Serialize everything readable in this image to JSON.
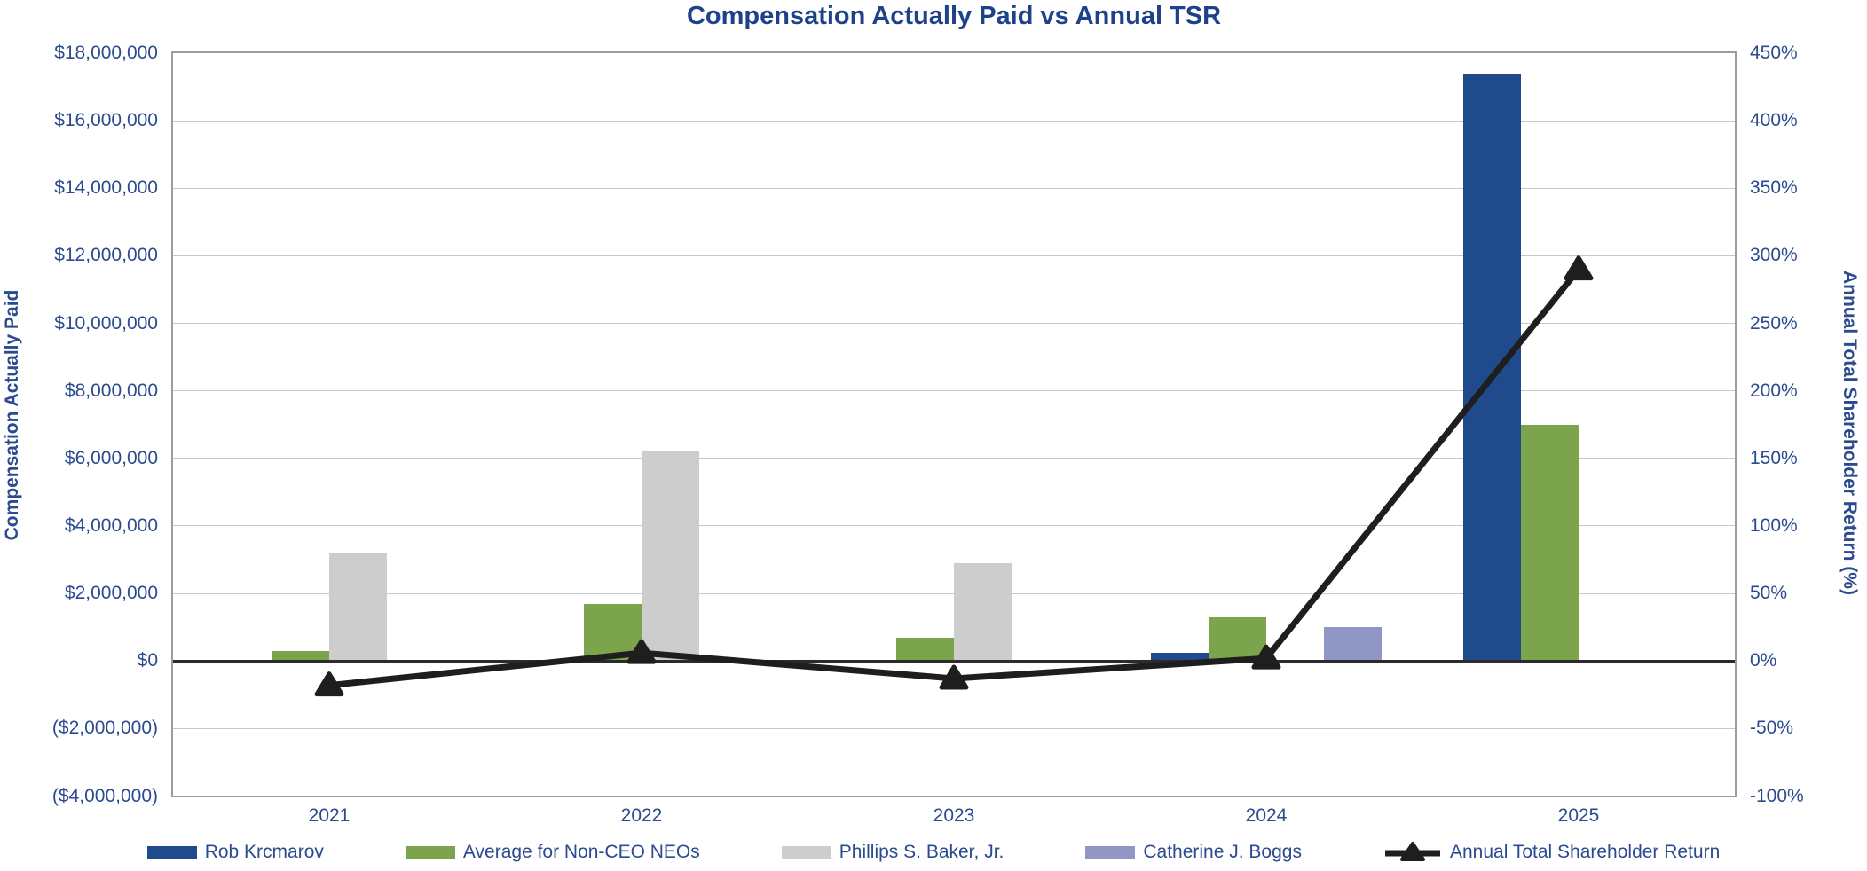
{
  "title": "Compensation Actually Paid vs Annual TSR",
  "left_axis": {
    "label": "Compensation Actually Paid",
    "max": 18000000,
    "min": -4000000,
    "step": 2000000,
    "ticks": [
      {
        "label": "$18,000,000",
        "value": 18000000
      },
      {
        "label": "$16,000,000",
        "value": 16000000
      },
      {
        "label": "$14,000,000",
        "value": 14000000
      },
      {
        "label": "$12,000,000",
        "value": 12000000
      },
      {
        "label": "$10,000,000",
        "value": 10000000
      },
      {
        "label": "$8,000,000",
        "value": 8000000
      },
      {
        "label": "$6,000,000",
        "value": 6000000
      },
      {
        "label": "$4,000,000",
        "value": 4000000
      },
      {
        "label": "$2,000,000",
        "value": 2000000
      },
      {
        "label": "$0",
        "value": 0
      },
      {
        "label": "($2,000,000)",
        "value": -2000000
      },
      {
        "label": "($4,000,000)",
        "value": -4000000
      }
    ]
  },
  "right_axis": {
    "label": "Annual Total Shareholder Return (%)",
    "max": 450,
    "min": -100,
    "step": 50,
    "ticks": [
      {
        "label": "450%",
        "value": 450
      },
      {
        "label": "400%",
        "value": 400
      },
      {
        "label": "350%",
        "value": 350
      },
      {
        "label": "300%",
        "value": 300
      },
      {
        "label": "250%",
        "value": 250
      },
      {
        "label": "200%",
        "value": 200
      },
      {
        "label": "150%",
        "value": 150
      },
      {
        "label": "100%",
        "value": 100
      },
      {
        "label": "50%",
        "value": 50
      },
      {
        "label": "0%",
        "value": 0
      },
      {
        "label": "-50%",
        "value": -50
      },
      {
        "label": "-100%",
        "value": -100
      }
    ]
  },
  "colors": {
    "title_text": "#1E4289",
    "axis_text": "#2B4A8F",
    "gridline": "#C8C8C8",
    "zero_line": "#2B2B2B"
  },
  "chart_data": {
    "type": "bar",
    "secondary_type": "line",
    "categories": [
      "2021",
      "2022",
      "2023",
      "2024",
      "2025"
    ],
    "grid": true,
    "legend_position": "bottom",
    "left_ylim": [
      -4000000,
      18000000
    ],
    "right_ylim": [
      -100,
      450
    ],
    "series": [
      {
        "name": "Rob Krcmarov",
        "type": "bar",
        "axis": "left",
        "color": "#1F4A8B",
        "values": [
          null,
          null,
          null,
          250000,
          17400000
        ]
      },
      {
        "name": "Average for Non-CEO NEOs",
        "type": "bar",
        "axis": "left",
        "color": "#7CA44C",
        "values": [
          300000,
          1700000,
          700000,
          1300000,
          7000000
        ]
      },
      {
        "name": "Phillips S. Baker, Jr.",
        "type": "bar",
        "axis": "left",
        "color": "#CDCDCE",
        "values": [
          3200000,
          6200000,
          2900000,
          null,
          null
        ]
      },
      {
        "name": "Catherine J. Boggs",
        "type": "bar",
        "axis": "left",
        "color": "#9097C5",
        "values": [
          null,
          null,
          null,
          1000000,
          null
        ]
      },
      {
        "name": "Annual Total Shareholder Return",
        "type": "line",
        "axis": "right",
        "color": "#1E1E1E",
        "values": [
          -18,
          6,
          -13,
          2,
          290
        ]
      }
    ]
  }
}
